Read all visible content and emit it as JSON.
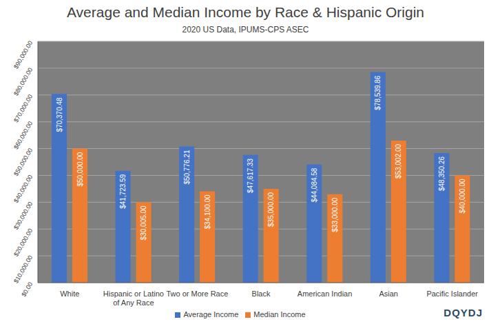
{
  "chart_data": {
    "type": "bar",
    "title": "Average and Median Income by Race & Hispanic Origin",
    "subtitle": "2020 US Data, IPUMS-CPS ASEC",
    "categories": [
      "White",
      "Hispanic or Latino of Any Race",
      "Two or More Race",
      "Black",
      "American Indian",
      "Asian",
      "Pacific Islander"
    ],
    "series": [
      {
        "name": "Average Income",
        "color": "#4472c4",
        "values": [
          70370.48,
          41723.59,
          50776.21,
          47617.33,
          44084.58,
          78539.86,
          48350.26
        ],
        "value_labels": [
          "$70,370.48",
          "$41,723.59",
          "$50,776.21",
          "$47,617.33",
          "$44,084.58",
          "$78,539.86",
          "$48,350.26"
        ]
      },
      {
        "name": "Median Income",
        "color": "#ed7d31",
        "values": [
          50000,
          30005,
          34100,
          35000,
          33000,
          53002,
          40000
        ],
        "value_labels": [
          "$50,000.00",
          "$30,005.00",
          "$34,100.00",
          "$35,000.00",
          "$33,000.00",
          "$53,002.00",
          "$40,000.00"
        ]
      }
    ],
    "ylim": [
      0,
      90000
    ],
    "yticks": [
      {
        "value": 0,
        "label": "$0.00"
      },
      {
        "value": 10000,
        "label": "$10,000.00"
      },
      {
        "value": 20000,
        "label": "$20,000.00"
      },
      {
        "value": 30000,
        "label": "$30,000.00"
      },
      {
        "value": 40000,
        "label": "$40,000.00"
      },
      {
        "value": 50000,
        "label": "$50,000.00"
      },
      {
        "value": 60000,
        "label": "$60,000.00"
      },
      {
        "value": 70000,
        "label": "$70,000.00"
      },
      {
        "value": 80000,
        "label": "$80,000.00"
      },
      {
        "value": 90000,
        "label": "$90,000.00"
      }
    ],
    "grid": true,
    "data_labels": true,
    "legend": "bottom",
    "annotations": [
      "DQYDJ"
    ]
  }
}
